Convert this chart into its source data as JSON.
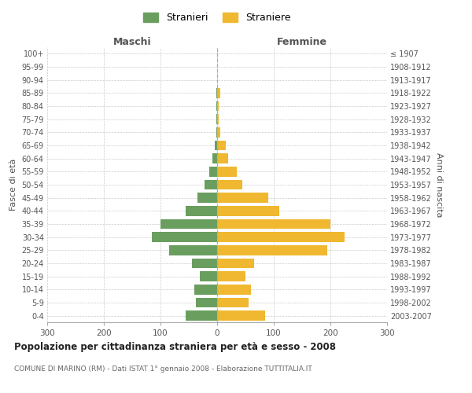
{
  "age_groups": [
    "0-4",
    "5-9",
    "10-14",
    "15-19",
    "20-24",
    "25-29",
    "30-34",
    "35-39",
    "40-44",
    "45-49",
    "50-54",
    "55-59",
    "60-64",
    "65-69",
    "70-74",
    "75-79",
    "80-84",
    "85-89",
    "90-94",
    "95-99",
    "100+"
  ],
  "birth_years": [
    "2003-2007",
    "1998-2002",
    "1993-1997",
    "1988-1992",
    "1983-1987",
    "1978-1982",
    "1973-1977",
    "1968-1972",
    "1963-1967",
    "1958-1962",
    "1953-1957",
    "1948-1952",
    "1943-1947",
    "1938-1942",
    "1933-1937",
    "1928-1932",
    "1923-1927",
    "1918-1922",
    "1913-1917",
    "1908-1912",
    "≤ 1907"
  ],
  "maschi": [
    55,
    38,
    40,
    30,
    45,
    85,
    115,
    100,
    55,
    35,
    22,
    14,
    8,
    4,
    2,
    1,
    1,
    1,
    0,
    0,
    0
  ],
  "femmine": [
    85,
    55,
    60,
    50,
    65,
    195,
    225,
    200,
    110,
    90,
    45,
    35,
    20,
    15,
    5,
    3,
    3,
    6,
    0,
    0,
    0
  ],
  "color_maschi": "#6a9e5f",
  "color_femmine": "#f0b830",
  "title": "Popolazione per cittadinanza straniera per età e sesso - 2008",
  "subtitle": "COMUNE DI MARINO (RM) - Dati ISTAT 1° gennaio 2008 - Elaborazione TUTTITALIA.IT",
  "xlabel_left": "Maschi",
  "xlabel_right": "Femmine",
  "ylabel_left": "Fasce di età",
  "ylabel_right": "Anni di nascita",
  "legend_maschi": "Stranieri",
  "legend_femmine": "Straniere",
  "xlim": 300,
  "background_color": "#ffffff",
  "grid_color": "#cccccc"
}
